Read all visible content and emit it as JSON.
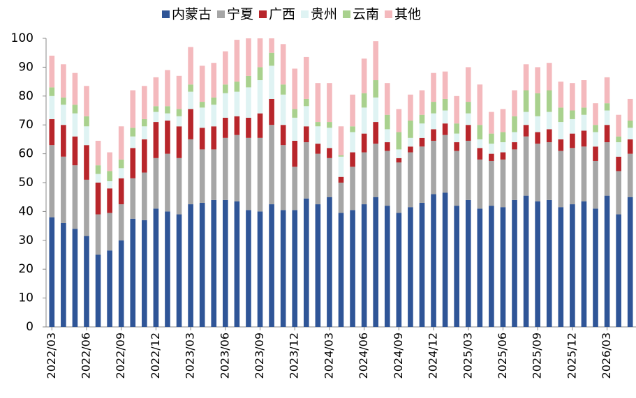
{
  "chart_data": {
    "type": "stacked_bar",
    "categories": [
      "2022/03",
      null,
      null,
      "2022/06",
      null,
      null,
      "2022/09",
      null,
      null,
      "2022/12",
      null,
      null,
      "2023/03",
      null,
      null,
      "2023/06",
      null,
      null,
      "2023/09",
      null,
      null,
      "2023/12",
      null,
      null,
      "2024/03",
      null,
      null,
      "2024/06",
      null,
      null,
      "2024/09",
      null,
      null,
      "2024/12",
      null,
      null,
      "2025/03",
      null,
      null,
      "2025/06",
      null,
      null,
      "2025/09",
      null,
      null,
      "2025/12",
      null,
      null,
      "2026/03",
      null,
      null
    ],
    "series": [
      {
        "name": "内蒙古",
        "color": "#2f5597",
        "values": [
          38,
          36,
          34,
          31.5,
          25,
          26.5,
          30,
          37.5,
          37,
          41,
          40,
          39,
          42.5,
          43,
          44,
          44,
          43.5,
          40.5,
          40,
          42.5,
          40.5,
          40.5,
          44.5,
          42.5,
          45,
          39.5,
          40.5,
          42.5,
          45,
          42,
          39.5,
          41.5,
          43,
          46,
          46.5,
          42,
          44,
          41,
          42,
          41.5,
          44,
          45.5,
          43.5,
          44,
          41.5,
          42.5,
          43.5,
          41,
          45.5,
          39,
          45
        ]
      },
      {
        "name": "宁夏",
        "color": "#a6a6a6",
        "values": [
          25,
          23,
          22,
          19.5,
          14,
          13,
          12.5,
          14,
          16.5,
          17.5,
          20,
          19.5,
          22.5,
          18.5,
          17.5,
          21.5,
          23,
          25,
          25.5,
          27.5,
          22.5,
          15,
          19.5,
          17.5,
          13.5,
          10.5,
          15,
          18,
          18.5,
          19,
          17.5,
          19,
          19.5,
          18.5,
          20,
          19,
          20.5,
          17,
          15.5,
          16.5,
          17.5,
          20.5,
          20,
          20,
          19.5,
          19.5,
          19,
          16.5,
          18.5,
          15,
          15
        ]
      },
      {
        "name": "广西",
        "color": "#b8262b",
        "values": [
          9,
          11,
          10,
          12,
          11,
          8.5,
          9,
          10.5,
          11.5,
          12.5,
          11.5,
          11,
          10.5,
          7.5,
          8,
          7,
          6.5,
          7,
          8.5,
          9,
          7,
          9,
          5.5,
          3.5,
          3.5,
          2,
          5,
          6.5,
          7.5,
          3,
          1.5,
          2,
          3,
          4,
          4,
          3,
          5.5,
          4,
          2.5,
          2.5,
          2.5,
          4,
          4,
          4.5,
          4,
          5,
          5.5,
          5,
          6,
          5,
          5
        ]
      },
      {
        "name": "贵州",
        "color": "#dff3f3",
        "values": [
          8,
          7,
          8,
          6.5,
          3,
          2.5,
          3.5,
          4,
          4.5,
          3.5,
          2.5,
          3.5,
          6,
          7,
          7.5,
          8.5,
          8.5,
          10.5,
          11.5,
          11.5,
          10.5,
          8,
          7,
          6,
          7,
          7,
          7,
          9,
          8.5,
          4.5,
          3,
          3,
          5,
          5.5,
          4.5,
          3,
          4,
          3,
          3.5,
          3.5,
          3.5,
          4.5,
          5.5,
          6,
          6,
          5,
          5.5,
          5,
          5,
          5,
          4
        ]
      },
      {
        "name": "云南",
        "color": "#a9d18e",
        "values": [
          3,
          2.5,
          3,
          3.5,
          3,
          3.5,
          3,
          3,
          2.5,
          2,
          2.5,
          2.5,
          2.5,
          2,
          2.5,
          3,
          3.5,
          4,
          4.5,
          4.5,
          3.5,
          3,
          2.5,
          1.5,
          2,
          0.5,
          2,
          5,
          6,
          5,
          6,
          6,
          3,
          4,
          4,
          3.5,
          4,
          5,
          3.5,
          3.5,
          5.5,
          7.5,
          8,
          7.5,
          5,
          3,
          2.5,
          2.5,
          2.5,
          2,
          2.5
        ]
      },
      {
        "name": "其他",
        "color": "#f4b9bd",
        "values": [
          11,
          11.5,
          11,
          10.5,
          8.5,
          6.5,
          11.5,
          13,
          11.5,
          10,
          12.5,
          11.5,
          13,
          12.5,
          12,
          11.5,
          14.5,
          13,
          10,
          5,
          14,
          14,
          14.5,
          13.5,
          13.5,
          10,
          11,
          12,
          13.5,
          11,
          8,
          9,
          8.5,
          10,
          9.5,
          9.5,
          12,
          14,
          7.5,
          8,
          9,
          9,
          9,
          9.5,
          9,
          9.5,
          9.5,
          7.5,
          9,
          7.5,
          7.5
        ]
      }
    ],
    "ylim": [
      0,
      100
    ],
    "yticks": [
      0,
      10,
      20,
      30,
      40,
      50,
      60,
      70,
      80,
      90,
      100
    ],
    "legend": "top"
  }
}
